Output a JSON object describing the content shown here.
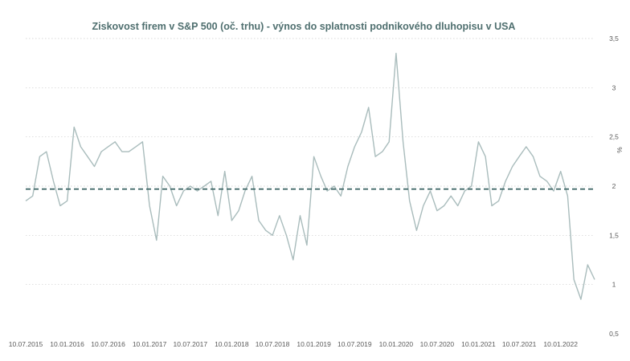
{
  "chart_data": {
    "type": "line",
    "title": "Ziskovost firem v S&P 500 (oč. trhu) - výnos do splatnosti podnikového dluhopisu v USA",
    "y_unit": "%",
    "ylim": [
      0.5,
      3.5
    ],
    "yticks": [
      "0,5",
      "1",
      "1,5",
      "2",
      "2,5",
      "3",
      "3,5"
    ],
    "xlim": [
      "2015-07-10",
      "2022-06-10"
    ],
    "xticks": [
      "10.07.2015",
      "10.01.2016",
      "10.07.2016",
      "10.01.2017",
      "10.07.2017",
      "10.01.2018",
      "10.07.2018",
      "10.01.2019",
      "10.07.2019",
      "10.01.2020",
      "10.07.2020",
      "10.01.2021",
      "10.07.2021",
      "10.01.2022"
    ],
    "grid": "horizontal dotted",
    "reference_line": {
      "value": 1.97,
      "style": "dashed"
    },
    "colors": {
      "series": "#a9bcbc",
      "reference": "#456b6b",
      "title": "#4f6f6f",
      "grid": "#cccccc"
    },
    "series": [
      {
        "x": [
          "2015-07-10",
          "2015-08-10",
          "2015-09-10",
          "2015-10-10",
          "2015-11-10",
          "2015-12-10",
          "2016-01-10",
          "2016-02-10",
          "2016-03-10",
          "2016-04-10",
          "2016-05-10",
          "2016-06-10",
          "2016-07-10",
          "2016-08-10",
          "2016-09-10",
          "2016-10-10",
          "2016-11-10",
          "2016-12-10",
          "2017-01-10",
          "2017-02-10",
          "2017-03-10",
          "2017-04-10",
          "2017-05-10",
          "2017-06-10",
          "2017-07-10",
          "2017-08-10",
          "2017-09-10",
          "2017-10-10",
          "2017-11-10",
          "2017-12-10",
          "2018-01-10",
          "2018-02-10",
          "2018-03-10",
          "2018-04-10",
          "2018-05-10",
          "2018-06-10",
          "2018-07-10",
          "2018-08-10",
          "2018-09-10",
          "2018-10-10",
          "2018-11-10",
          "2018-12-10",
          "2019-01-10",
          "2019-02-10",
          "2019-03-10",
          "2019-04-10",
          "2019-05-10",
          "2019-06-10",
          "2019-07-10",
          "2019-08-10",
          "2019-09-10",
          "2019-10-10",
          "2019-11-10",
          "2019-12-10",
          "2020-01-10",
          "2020-02-10",
          "2020-03-10",
          "2020-04-10",
          "2020-05-10",
          "2020-06-10",
          "2020-07-10",
          "2020-08-10",
          "2020-09-10",
          "2020-10-10",
          "2020-11-10",
          "2020-12-10",
          "2021-01-10",
          "2021-02-10",
          "2021-03-10",
          "2021-04-10",
          "2021-05-10",
          "2021-06-10",
          "2021-07-10",
          "2021-08-10",
          "2021-09-10",
          "2021-10-10",
          "2021-11-10",
          "2021-12-10",
          "2022-01-10",
          "2022-02-10",
          "2022-03-10",
          "2022-04-10",
          "2022-05-10",
          "2022-06-10"
        ],
        "values": [
          1.85,
          1.9,
          2.3,
          2.35,
          2.05,
          1.8,
          1.85,
          2.6,
          2.4,
          2.3,
          2.2,
          2.35,
          2.4,
          2.45,
          2.35,
          2.35,
          2.4,
          2.45,
          1.8,
          1.45,
          2.1,
          2.0,
          1.8,
          1.95,
          2.0,
          1.95,
          2.0,
          2.05,
          1.7,
          2.15,
          1.65,
          1.75,
          1.95,
          2.1,
          1.65,
          1.55,
          1.5,
          1.7,
          1.5,
          1.25,
          1.7,
          1.4,
          2.3,
          2.1,
          1.95,
          2.0,
          1.9,
          2.2,
          2.4,
          2.55,
          2.8,
          2.3,
          2.35,
          2.45,
          3.35,
          2.45,
          1.85,
          1.55,
          1.8,
          1.95,
          1.75,
          1.8,
          1.9,
          1.8,
          1.95,
          2.0,
          2.45,
          2.3,
          1.8,
          1.85,
          2.05,
          2.2,
          2.3,
          2.4,
          2.3,
          2.1,
          2.05,
          1.95,
          2.15,
          1.9,
          1.05,
          0.85,
          1.2,
          1.05
        ]
      }
    ]
  }
}
